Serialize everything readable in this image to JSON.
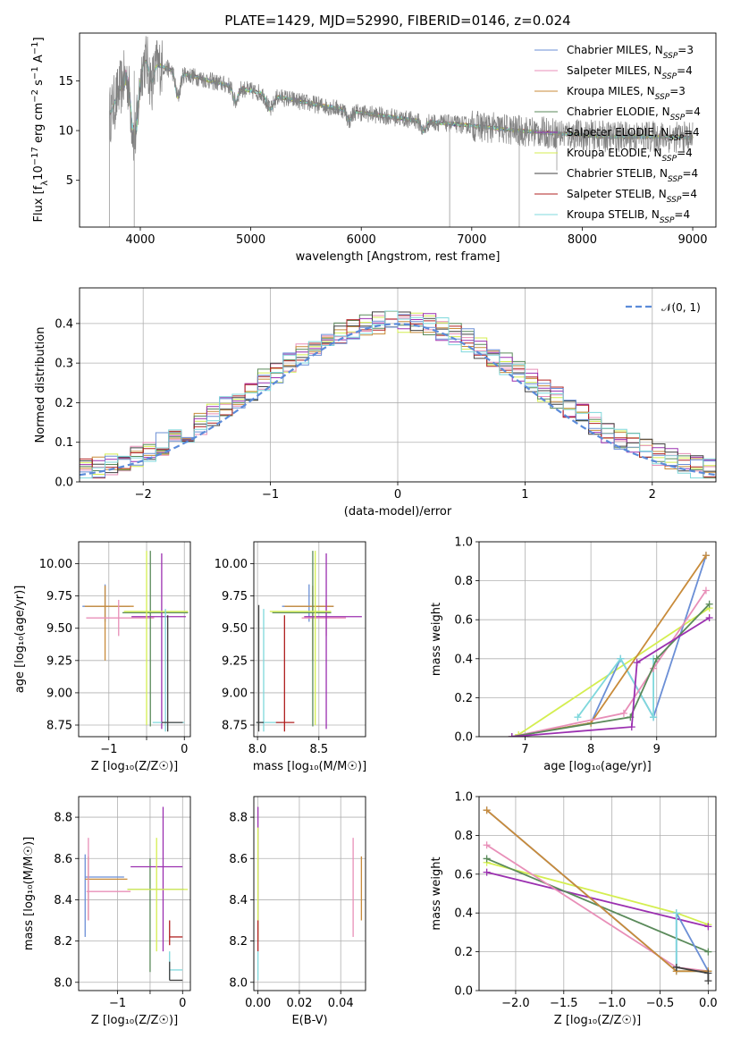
{
  "chart_data": [
    {
      "id": "spectrum",
      "type": "line",
      "title": "PLATE=1429, MJD=52990, FIBERID=0146, z=0.024",
      "xlabel": "wavelength [Angstrom, rest frame]",
      "ylabel_parts": [
        "Flux [f",
        "λ",
        "10",
        "−17",
        " erg cm",
        "−2",
        " s",
        "−1",
        " A",
        "−1",
        "]"
      ],
      "xlim": [
        3450,
        9210
      ],
      "ylim": [
        0.3,
        19.8
      ],
      "xticks": [
        4000,
        5000,
        6000,
        7000,
        8000,
        9000
      ],
      "xtick_labels": [
        "4000",
        "5000",
        "6000",
        "7000",
        "8000",
        "9000"
      ],
      "yticks": [
        5,
        10,
        15
      ],
      "ytick_labels": [
        "5",
        "10",
        "15"
      ],
      "grid": false,
      "legend_position": "top-right",
      "series": [
        {
          "name": "Chabrier MILES",
          "nssp": "3",
          "color": "#6b8fd6"
        },
        {
          "name": "Salpeter MILES",
          "nssp": "4",
          "color": "#e88fb8"
        },
        {
          "name": "Kroupa MILES",
          "nssp": "3",
          "color": "#c88b3a"
        },
        {
          "name": "Chabrier ELODIE",
          "nssp": "4",
          "color": "#5a8a5a"
        },
        {
          "name": "Salpeter ELODIE",
          "nssp": "4",
          "color": "#9b30b0"
        },
        {
          "name": "Kroupa ELODIE",
          "nssp": "4",
          "color": "#d4ee50"
        },
        {
          "name": "Chabrier STELIB",
          "nssp": "4",
          "color": "#404040"
        },
        {
          "name": "Salpeter STELIB",
          "nssp": "4",
          "color": "#b02020"
        },
        {
          "name": "Kroupa STELIB",
          "nssp": "4",
          "color": "#7fd8dc"
        }
      ],
      "nssp_prefix": "N",
      "nssp_sub": "SSP",
      "data_color": "#808080",
      "continuum": {
        "x": [
          3720,
          3900,
          4000,
          4300,
          4700,
          5000,
          5500,
          6000,
          6500,
          7000,
          7400,
          7800,
          8200,
          8600,
          9000
        ],
        "y": [
          11.5,
          16.5,
          17.3,
          16.0,
          14.8,
          14.0,
          12.8,
          11.8,
          11.0,
          10.5,
          10.0,
          9.7,
          9.4,
          9.4,
          9.3
        ]
      }
    },
    {
      "id": "residuals",
      "type": "step",
      "title": "",
      "xlabel": "(data-model)/error",
      "ylabel": "Normed distribution",
      "xlim": [
        -2.5,
        2.5
      ],
      "ylim": [
        0,
        0.49
      ],
      "xticks": [
        -2,
        -1,
        0,
        1,
        2
      ],
      "xtick_labels": [
        "−2",
        "−1",
        "0",
        "1",
        "2"
      ],
      "yticks": [
        0,
        0.1,
        0.2,
        0.3,
        0.4
      ],
      "ytick_labels": [
        "0.0",
        "0.1",
        "0.2",
        "0.3",
        "0.4"
      ],
      "grid": true,
      "legend_position": "top-right",
      "gaussian_label": "𝒩(0, 1)",
      "gaussian_color": "#5b8bd9",
      "bin_width": 0.1
    },
    {
      "id": "age-vs-Z",
      "type": "errorbar",
      "xlabel": "Z [log₁₀(Z/Z☉)]",
      "ylabel": "age  [log₁₀(age/yr)]",
      "xlim": [
        -1.4,
        0.08
      ],
      "ylim": [
        8.66,
        10.17
      ],
      "xticks": [
        -1,
        -0.5,
        0
      ],
      "xtick_labels": [
        "−1",
        "",
        "0"
      ],
      "yticks": [
        8.75,
        9.0,
        9.25,
        9.5,
        9.75,
        10.0
      ],
      "ytick_labels": [
        "8.75",
        "9.00",
        "9.25",
        "9.50",
        "9.75",
        "10.00"
      ],
      "grid": true,
      "points": [
        {
          "x": -1.05,
          "x_lo": -1.35,
          "x_hi": -0.72,
          "y": 9.67,
          "y_lo": 9.55,
          "y_hi": 9.84,
          "c": 0
        },
        {
          "x": -1.05,
          "x_lo": -1.32,
          "x_hi": -0.67,
          "y": 9.67,
          "y_lo": 9.25,
          "y_hi": 9.83,
          "c": 2
        },
        {
          "x": -0.87,
          "x_lo": -1.3,
          "x_hi": -0.4,
          "y": 9.58,
          "y_lo": 9.44,
          "y_hi": 9.72,
          "c": 1
        },
        {
          "x": -0.45,
          "x_lo": -0.82,
          "x_hi": 0.05,
          "y": 9.62,
          "y_lo": 8.74,
          "y_hi": 10.1,
          "c": 3
        },
        {
          "x": -0.3,
          "x_lo": -0.7,
          "x_hi": 0.02,
          "y": 9.59,
          "y_lo": 8.72,
          "y_hi": 10.08,
          "c": 4
        },
        {
          "x": -0.5,
          "x_lo": -0.8,
          "x_hi": 0.05,
          "y": 9.63,
          "y_lo": 8.75,
          "y_hi": 10.1,
          "c": 5
        },
        {
          "x": -0.25,
          "x_lo": -0.42,
          "x_hi": 0.0,
          "y": 8.77,
          "y_lo": 8.7,
          "y_hi": 9.65,
          "c": 8
        },
        {
          "x": -0.22,
          "x_lo": -0.3,
          "x_hi": -0.02,
          "y": 8.77,
          "y_lo": 8.7,
          "y_hi": 9.6,
          "c": 6
        }
      ]
    },
    {
      "id": "age-vs-mass",
      "type": "errorbar",
      "xlabel": "mass [log₁₀(M/M☉)]",
      "xlim": [
        7.97,
        8.88
      ],
      "ylim": [
        8.66,
        10.17
      ],
      "xticks": [
        8.0,
        8.5
      ],
      "xtick_labels": [
        "8.0",
        "8.5"
      ],
      "yticks": [
        8.75,
        9.0,
        9.25,
        9.5,
        9.75,
        10.0
      ],
      "ytick_labels": [
        "8.75",
        "9.00",
        "9.25",
        "9.50",
        "9.75",
        "10.00"
      ],
      "grid": true,
      "points": [
        {
          "x": 8.42,
          "x_lo": 8.2,
          "x_hi": 8.62,
          "y": 9.67,
          "y_lo": 9.55,
          "y_hi": 9.84,
          "c": 0
        },
        {
          "x": 8.45,
          "x_lo": 8.22,
          "x_hi": 8.62,
          "y": 9.67,
          "y_lo": 9.25,
          "y_hi": 9.83,
          "c": 2
        },
        {
          "x": 8.56,
          "x_lo": 8.36,
          "x_hi": 8.72,
          "y": 9.58,
          "y_lo": 9.44,
          "y_hi": 9.72,
          "c": 1
        },
        {
          "x": 8.45,
          "x_lo": 8.12,
          "x_hi": 8.6,
          "y": 9.62,
          "y_lo": 8.74,
          "y_hi": 10.1,
          "c": 3
        },
        {
          "x": 8.56,
          "x_lo": 8.38,
          "x_hi": 8.85,
          "y": 9.59,
          "y_lo": 8.72,
          "y_hi": 10.08,
          "c": 4
        },
        {
          "x": 8.47,
          "x_lo": 8.1,
          "x_hi": 8.6,
          "y": 9.63,
          "y_lo": 8.75,
          "y_hi": 10.1,
          "c": 5
        },
        {
          "x": 8.05,
          "x_lo": 7.99,
          "x_hi": 8.2,
          "y": 8.77,
          "y_lo": 8.7,
          "y_hi": 9.65,
          "c": 8
        },
        {
          "x": 8.01,
          "x_lo": 7.99,
          "x_hi": 8.05,
          "y": 8.77,
          "y_lo": 8.7,
          "y_hi": 9.68,
          "c": 6
        },
        {
          "x": 8.22,
          "x_lo": 8.15,
          "x_hi": 8.3,
          "y": 8.77,
          "y_lo": 8.7,
          "y_hi": 9.6,
          "c": 7
        }
      ]
    },
    {
      "id": "mass-weight-vs-age",
      "type": "line",
      "xlabel": "age  [log₁₀(age/yr)]",
      "ylabel": "mass weight",
      "xlim": [
        6.3,
        9.9
      ],
      "ylim": [
        0,
        1.0
      ],
      "xticks": [
        7,
        8,
        9
      ],
      "xtick_labels": [
        "7",
        "8",
        "9"
      ],
      "yticks": [
        0,
        0.2,
        0.4,
        0.6,
        0.8,
        1.0
      ],
      "ytick_labels": [
        "0.0",
        "0.2",
        "0.4",
        "0.6",
        "0.8",
        "1.0"
      ],
      "grid": true,
      "series": [
        {
          "c": 5,
          "x": [
            6.9,
            9.8
          ],
          "y": [
            0.01,
            0.66
          ]
        },
        {
          "c": 0,
          "x": [
            6.8,
            8.0,
            8.45,
            8.95,
            9.75
          ],
          "y": [
            0.0,
            0.07,
            0.4,
            0.1,
            0.93
          ]
        },
        {
          "c": 8,
          "x": [
            7.8,
            8.45,
            8.95,
            8.95
          ],
          "y": [
            0.1,
            0.4,
            0.1,
            0.4
          ]
        },
        {
          "c": 2,
          "x": [
            6.8,
            8.0,
            9.75
          ],
          "y": [
            0.0,
            0.07,
            0.93
          ]
        },
        {
          "c": 1,
          "x": [
            6.8,
            8.5,
            8.95,
            9.75
          ],
          "y": [
            0.0,
            0.12,
            0.35,
            0.75
          ]
        },
        {
          "c": 3,
          "x": [
            6.8,
            8.6,
            9.0,
            9.8
          ],
          "y": [
            0.0,
            0.1,
            0.4,
            0.68
          ]
        },
        {
          "c": 4,
          "x": [
            6.8,
            8.62,
            8.7,
            9.8
          ],
          "y": [
            0.0,
            0.05,
            0.38,
            0.61
          ]
        }
      ]
    },
    {
      "id": "mass-vs-Z",
      "type": "errorbar",
      "xlabel": "Z [log₁₀(Z/Z☉)]",
      "ylabel": "mass [log₁₀(M/M☉)]",
      "xlim": [
        -1.6,
        0.12
      ],
      "ylim": [
        7.96,
        8.9
      ],
      "xticks": [
        -1,
        -0.5,
        0
      ],
      "xtick_labels": [
        "−1",
        "",
        "0"
      ],
      "yticks": [
        8.0,
        8.2,
        8.4,
        8.6,
        8.8
      ],
      "ytick_labels": [
        "8.0",
        "8.2",
        "8.4",
        "8.6",
        "8.8"
      ],
      "grid": true,
      "points": [
        {
          "x": -1.5,
          "x_lo": -1.5,
          "x_hi": -0.9,
          "y": 8.51,
          "y_lo": 8.22,
          "y_hi": 8.62,
          "c": 0
        },
        {
          "x": -1.45,
          "x_lo": -1.5,
          "x_hi": -0.85,
          "y": 8.5,
          "y_lo": 8.3,
          "y_hi": 8.61,
          "c": 2
        },
        {
          "x": -1.45,
          "x_lo": -1.48,
          "x_hi": -0.8,
          "y": 8.44,
          "y_lo": 8.3,
          "y_hi": 8.7,
          "c": 1
        },
        {
          "x": -0.5,
          "x_lo": -0.85,
          "x_hi": 0.02,
          "y": 8.45,
          "y_lo": 8.05,
          "y_hi": 8.6,
          "c": 3
        },
        {
          "x": -0.3,
          "x_lo": -0.8,
          "x_hi": 0.0,
          "y": 8.56,
          "y_lo": 8.15,
          "y_hi": 8.85,
          "c": 4
        },
        {
          "x": -0.4,
          "x_lo": -0.85,
          "x_hi": 0.08,
          "y": 8.45,
          "y_lo": 8.15,
          "y_hi": 8.7,
          "c": 5
        },
        {
          "x": -0.2,
          "x_lo": -0.2,
          "x_hi": 0.0,
          "y": 8.06,
          "y_lo": 8.01,
          "y_hi": 8.15,
          "c": 8
        },
        {
          "x": -0.2,
          "x_lo": -0.2,
          "x_hi": 0.0,
          "y": 8.22,
          "y_lo": 8.18,
          "y_hi": 8.3,
          "c": 7
        },
        {
          "x": -0.2,
          "x_lo": -0.2,
          "x_hi": 0.0,
          "y": 8.01,
          "y_lo": 8.01,
          "y_hi": 8.1,
          "c": 6
        }
      ]
    },
    {
      "id": "mass-vs-ebv",
      "type": "errorbar",
      "xlabel": "E(B-V)",
      "xlim": [
        -0.002,
        0.052
      ],
      "ylim": [
        7.96,
        8.9
      ],
      "xticks": [
        0.0,
        0.02,
        0.04
      ],
      "xtick_labels": [
        "0.00",
        "0.02",
        "0.04"
      ],
      "yticks": [
        8.0,
        8.2,
        8.4,
        8.6,
        8.8
      ],
      "ytick_labels": [
        "8.0",
        "8.2",
        "8.4",
        "8.6",
        "8.8"
      ],
      "grid": true,
      "points": [
        {
          "x": 0.0,
          "x_lo": 0.0,
          "x_hi": 0.0,
          "y": 8.5,
          "y_lo": 8.3,
          "y_hi": 8.85,
          "c": 4
        },
        {
          "x": 0.0,
          "x_lo": 0.0,
          "x_hi": 0.0,
          "y": 8.5,
          "y_lo": 8.2,
          "y_hi": 8.75,
          "c": 5
        },
        {
          "x": 0.0,
          "x_lo": 0.0,
          "x_hi": 0.0,
          "y": 8.22,
          "y_lo": 8.15,
          "y_hi": 8.3,
          "c": 7
        },
        {
          "x": 0.0,
          "x_lo": 0.0,
          "x_hi": 0.0,
          "y": 8.06,
          "y_lo": 8.01,
          "y_hi": 8.15,
          "c": 8
        },
        {
          "x": 0.046,
          "x_lo": 0.046,
          "x_hi": 0.046,
          "y": 8.45,
          "y_lo": 8.22,
          "y_hi": 8.7,
          "c": 1
        },
        {
          "x": 0.05,
          "x_lo": 0.05,
          "x_hi": 0.05,
          "y": 8.45,
          "y_lo": 8.3,
          "y_hi": 8.61,
          "c": 2
        }
      ]
    },
    {
      "id": "mass-weight-vs-Z",
      "type": "line",
      "xlabel": "Z [log₁₀(Z/Z☉)]",
      "ylabel": "mass weight",
      "xlim": [
        -2.38,
        0.08
      ],
      "ylim": [
        0,
        1.0
      ],
      "xticks": [
        -2.0,
        -1.5,
        -1.0,
        -0.5,
        0.0
      ],
      "xtick_labels": [
        "−2.0",
        "−1.5",
        "−1.0",
        "−0.5",
        "0.0"
      ],
      "yticks": [
        0,
        0.2,
        0.4,
        0.6,
        0.8,
        1.0
      ],
      "ytick_labels": [
        "0.0",
        "0.2",
        "0.4",
        "0.6",
        "0.8",
        "1.0"
      ],
      "grid": true,
      "series": [
        {
          "c": 5,
          "x": [
            -2.3,
            -0.33,
            0.0
          ],
          "y": [
            0.66,
            0.4,
            0.34
          ]
        },
        {
          "c": 4,
          "x": [
            -2.3,
            0.0
          ],
          "y": [
            0.61,
            0.33
          ]
        },
        {
          "c": 3,
          "x": [
            -2.3,
            0.0
          ],
          "y": [
            0.68,
            0.2
          ]
        },
        {
          "c": 1,
          "x": [
            -2.3,
            -0.33,
            0.0
          ],
          "y": [
            0.75,
            0.12,
            0.1
          ]
        },
        {
          "c": 0,
          "x": [
            -2.3,
            -0.33,
            -0.33,
            0.0
          ],
          "y": [
            0.93,
            0.1,
            0.4,
            0.1
          ]
        },
        {
          "c": 8,
          "x": [
            -0.33,
            -0.33,
            0.0
          ],
          "y": [
            0.4,
            0.1,
            0.1
          ]
        },
        {
          "c": 2,
          "x": [
            -2.3,
            -0.33,
            0.0
          ],
          "y": [
            0.93,
            0.1,
            0.1
          ]
        },
        {
          "c": 6,
          "x": [
            -0.33,
            0.0,
            0.0
          ],
          "y": [
            0.12,
            0.09,
            0.05
          ]
        }
      ]
    }
  ]
}
